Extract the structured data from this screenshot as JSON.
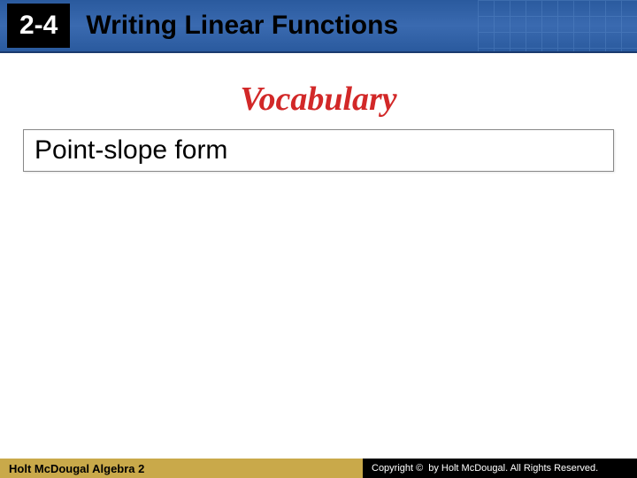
{
  "header": {
    "chapter": "2-4",
    "title": "Writing Linear Functions",
    "bar_gradient_top": "#2a5a9e",
    "bar_gradient_mid": "#3a6ab0",
    "grid_color": "#5a8ac8",
    "chapter_box_bg": "#000000",
    "chapter_box_color": "#ffffff",
    "title_color": "#000000"
  },
  "content": {
    "vocab_heading": "Vocabulary",
    "vocab_heading_color": "#d22828",
    "vocab_term": "Point-slope form",
    "vocab_box_border": "#888888",
    "vocab_box_bg": "#ffffff"
  },
  "footer": {
    "left_text": "Holt McDougal Algebra 2",
    "left_bg": "#c9a94a",
    "right_text": "by Holt McDougal. All Rights Reserved.",
    "copyright_label": "Copyright ©",
    "right_bg": "#000000"
  }
}
